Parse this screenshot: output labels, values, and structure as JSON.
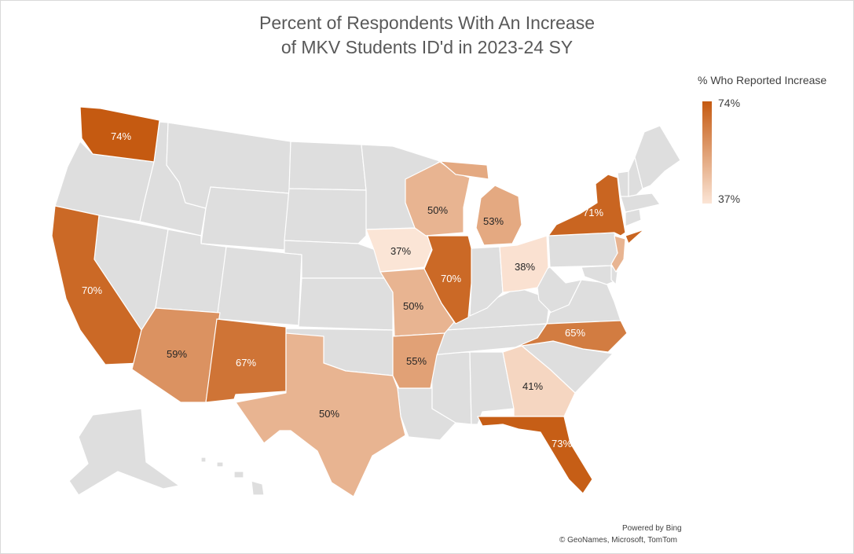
{
  "title": {
    "line1": "Percent of Respondents With An Increase",
    "line2": "of MKV Students ID'd in 2023-24 SY"
  },
  "legend": {
    "title": "% Who Reported Increase",
    "max_label": "74%",
    "min_label": "37%",
    "max_value": 74,
    "min_value": 37,
    "color_high": "#c55a11",
    "color_low": "#fbe5d6"
  },
  "colors": {
    "no_data": "#dedede",
    "border": "#ffffff",
    "label_dark": "#262626",
    "label_light": "#ffffff"
  },
  "states": [
    {
      "id": "WA",
      "name": "Washington",
      "value": 74,
      "label": "74%"
    },
    {
      "id": "CA",
      "name": "California",
      "value": 70,
      "label": "70%"
    },
    {
      "id": "AZ",
      "name": "Arizona",
      "value": 59,
      "label": "59%"
    },
    {
      "id": "NM",
      "name": "New Mexico",
      "value": 67,
      "label": "67%"
    },
    {
      "id": "TX",
      "name": "Texas",
      "value": 50,
      "label": "50%"
    },
    {
      "id": "IA",
      "name": "Iowa",
      "value": 37,
      "label": "37%"
    },
    {
      "id": "MO",
      "name": "Missouri",
      "value": 50,
      "label": "50%"
    },
    {
      "id": "AR",
      "name": "Arkansas",
      "value": 55,
      "label": "55%"
    },
    {
      "id": "WI",
      "name": "Wisconsin",
      "value": 50,
      "label": "50%"
    },
    {
      "id": "IL",
      "name": "Illinois",
      "value": 70,
      "label": "70%"
    },
    {
      "id": "MI",
      "name": "Michigan",
      "value": 53,
      "label": "53%"
    },
    {
      "id": "OH",
      "name": "Ohio",
      "value": 38,
      "label": "38%"
    },
    {
      "id": "NY",
      "name": "New York",
      "value": 71,
      "label": "71%"
    },
    {
      "id": "NC",
      "name": "North Carolina",
      "value": 65,
      "label": "65%"
    },
    {
      "id": "GA",
      "name": "Georgia",
      "value": 41,
      "label": "41%"
    },
    {
      "id": "FL",
      "name": "Florida",
      "value": 73,
      "label": "73%"
    },
    {
      "id": "NJ",
      "name": "New Jersey",
      "value": 50,
      "label": ""
    }
  ],
  "attribution": {
    "line1": "Powered by Bing",
    "line2": "© GeoNames, Microsoft, TomTom"
  }
}
